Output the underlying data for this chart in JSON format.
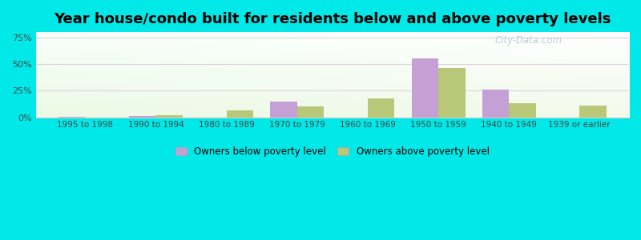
{
  "title": "Year house/condo built for residents below and above poverty levels",
  "categories": [
    "1995 to 1998",
    "1990 to 1994",
    "1980 to 1989",
    "1970 to 1979",
    "1960 to 1969",
    "1950 to 1959",
    "1940 to 1949",
    "1939 or earlier"
  ],
  "below_poverty": [
    0.5,
    1.5,
    0.0,
    15.0,
    0.0,
    55.0,
    26.0,
    0.0
  ],
  "above_poverty": [
    0.0,
    1.8,
    6.5,
    10.0,
    18.0,
    46.0,
    13.0,
    11.0
  ],
  "below_color": "#c4a0d4",
  "above_color": "#b8c878",
  "background_outer": "#00e8e8",
  "yticks": [
    0,
    25,
    50,
    75
  ],
  "ylim": [
    0,
    80
  ],
  "bar_width": 0.38,
  "title_fontsize": 13,
  "legend_below_label": "Owners below poverty level",
  "legend_above_label": "Owners above poverty level",
  "watermark": "City-Data.com"
}
